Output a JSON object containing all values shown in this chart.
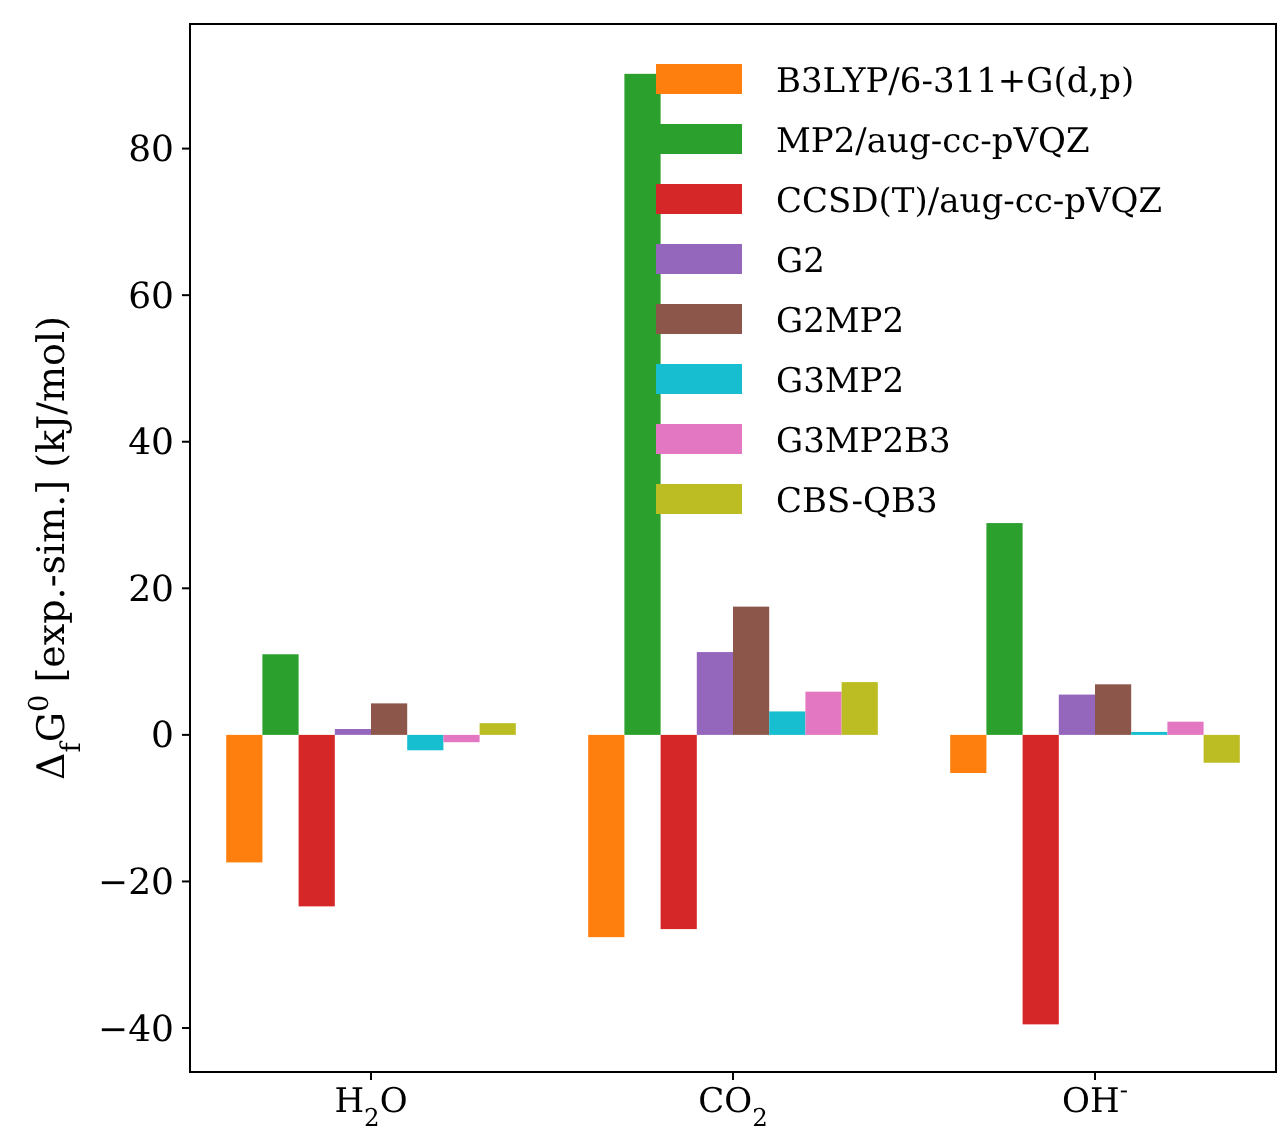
{
  "chart_data": {
    "type": "bar",
    "ylabel": "Δ$_{f}$G$^{0}$ [exp.-sim.] (kJ/mol)",
    "categories": [
      "H$_{2}$O",
      "CO$_{2}$",
      "OH$^{-}$"
    ],
    "series": [
      {
        "name": "B3LYP/6-311+G(d,p)",
        "color": "#ff7f0e",
        "values": [
          -17.4,
          -27.6,
          -5.2
        ]
      },
      {
        "name": "MP2/aug-cc-pVQZ",
        "color": "#2ca02c",
        "values": [
          11.0,
          90.2,
          28.9
        ]
      },
      {
        "name": "CCSD(T)/aug-cc-pVQZ",
        "color": "#d62728",
        "values": [
          -23.4,
          -26.5,
          -39.5
        ]
      },
      {
        "name": "G2",
        "color": "#9467bd",
        "values": [
          0.8,
          11.3,
          5.5
        ]
      },
      {
        "name": "G2MP2",
        "color": "#8c564b",
        "values": [
          4.3,
          17.5,
          6.9
        ]
      },
      {
        "name": "G3MP2",
        "color": "#17becf",
        "values": [
          -2.1,
          3.2,
          0.4
        ]
      },
      {
        "name": "G3MP2B3",
        "color": "#e377c2",
        "values": [
          -1.0,
          5.9,
          1.8
        ]
      },
      {
        "name": "CBS-QB3",
        "color": "#bcbd22",
        "values": [
          1.6,
          7.2,
          -3.8
        ]
      }
    ],
    "ylim": [
      -46,
      97
    ],
    "yticks": [
      -40,
      -20,
      0,
      20,
      40,
      60,
      80
    ],
    "grid": false,
    "legend": "top right"
  }
}
